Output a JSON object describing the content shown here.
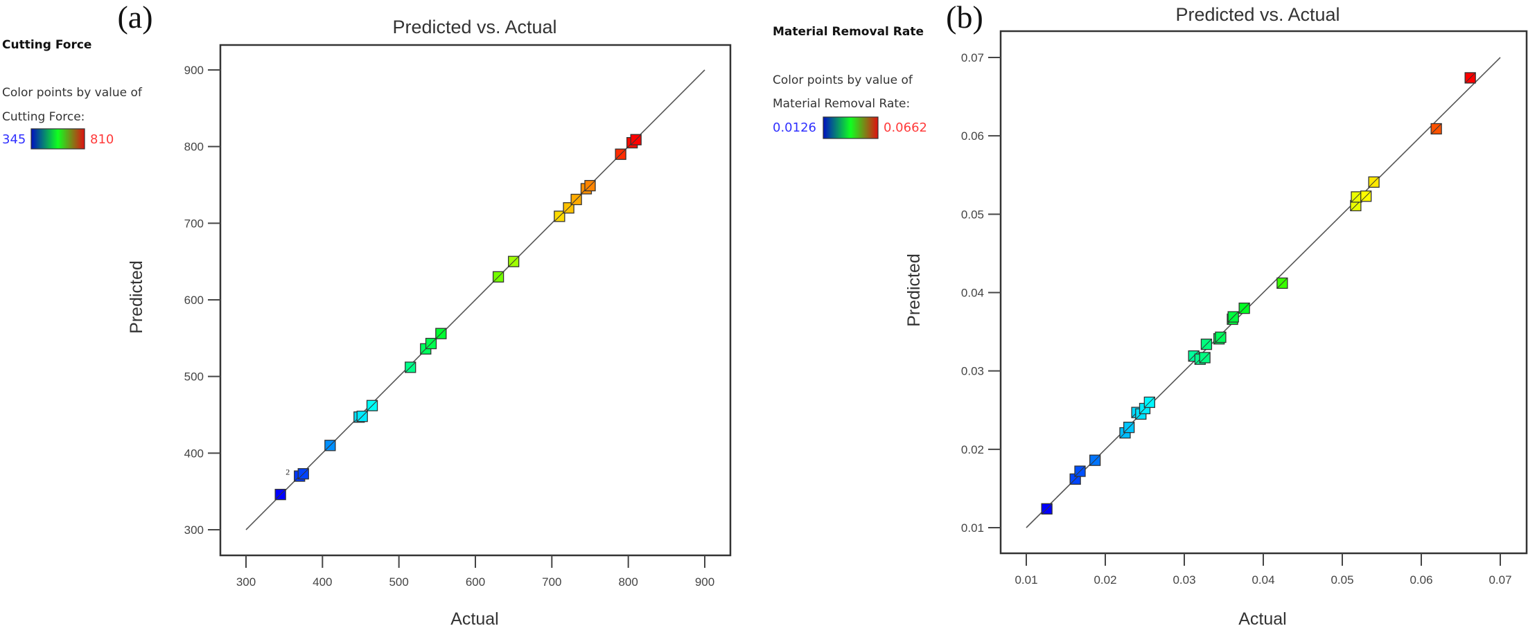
{
  "chart_data": [
    {
      "type": "scatter",
      "panel_label": "(a)",
      "title": "Predicted vs. Actual",
      "xlabel": "Actual",
      "ylabel": "Predicted",
      "xlim": [
        300,
        900
      ],
      "ylim": [
        300,
        900
      ],
      "xticks": [
        "300",
        "400",
        "500",
        "600",
        "700",
        "800",
        "900"
      ],
      "yticks": [
        "300",
        "400",
        "500",
        "600",
        "700",
        "800",
        "900"
      ],
      "legend": {
        "title": "Cutting Force",
        "line1": "Color points by value of",
        "line2": "Cutting Force:",
        "min_label": "345",
        "max_label": "810",
        "min": 345,
        "max": 810,
        "placement": "top-left"
      },
      "reference_line": [
        [
          300,
          300
        ],
        [
          900,
          900
        ]
      ],
      "points": [
        [
          345,
          346
        ],
        [
          370,
          370
        ],
        [
          375,
          373
        ],
        [
          410,
          410
        ],
        [
          448,
          447
        ],
        [
          452,
          448
        ],
        [
          465,
          462
        ],
        [
          515,
          512
        ],
        [
          535,
          536
        ],
        [
          542,
          543
        ],
        [
          555,
          556
        ],
        [
          630,
          630
        ],
        [
          650,
          650
        ],
        [
          710,
          709
        ],
        [
          722,
          720
        ],
        [
          732,
          731
        ],
        [
          745,
          745
        ],
        [
          750,
          749
        ],
        [
          790,
          790
        ],
        [
          805,
          805
        ],
        [
          810,
          809
        ]
      ],
      "annotations": [
        {
          "text": "2",
          "x": 370,
          "y": 370
        }
      ]
    },
    {
      "type": "scatter",
      "panel_label": "(b)",
      "title": "Predicted vs. Actual",
      "xlabel": "Actual",
      "ylabel": "Predicted",
      "xlim": [
        0.01,
        0.07
      ],
      "ylim": [
        0.01,
        0.07
      ],
      "xticks": [
        "0.01",
        "0.02",
        "0.03",
        "0.04",
        "0.05",
        "0.06",
        "0.07"
      ],
      "yticks": [
        "0.01",
        "0.02",
        "0.03",
        "0.04",
        "0.05",
        "0.06",
        "0.07"
      ],
      "legend": {
        "title": "Material Removal Rate",
        "line1": "Color points by value of",
        "line2": "Material Removal Rate:",
        "min_label": "0.0126",
        "max_label": "0.0662",
        "min": 0.0126,
        "max": 0.0662,
        "placement": "top-left"
      },
      "reference_line": [
        [
          0.01,
          0.01
        ],
        [
          0.07,
          0.07
        ]
      ],
      "points": [
        [
          0.0126,
          0.0124
        ],
        [
          0.0162,
          0.0162
        ],
        [
          0.0168,
          0.0172
        ],
        [
          0.0187,
          0.0186
        ],
        [
          0.0225,
          0.0221
        ],
        [
          0.023,
          0.0228
        ],
        [
          0.024,
          0.0247
        ],
        [
          0.0245,
          0.0245
        ],
        [
          0.025,
          0.0252
        ],
        [
          0.0256,
          0.026
        ],
        [
          0.0312,
          0.0319
        ],
        [
          0.032,
          0.0315
        ],
        [
          0.0326,
          0.0317
        ],
        [
          0.0328,
          0.0334
        ],
        [
          0.0344,
          0.0341
        ],
        [
          0.0346,
          0.0343
        ],
        [
          0.0361,
          0.0366
        ],
        [
          0.0362,
          0.0369
        ],
        [
          0.0376,
          0.038
        ],
        [
          0.0424,
          0.0412
        ],
        [
          0.0517,
          0.0511
        ],
        [
          0.0518,
          0.0522
        ],
        [
          0.053,
          0.0523
        ],
        [
          0.054,
          0.0541
        ],
        [
          0.0619,
          0.0609
        ],
        [
          0.0662,
          0.0674
        ]
      ],
      "annotations": []
    }
  ],
  "colors": {
    "legend_gradient": [
      "#0010c0",
      "#10ff20",
      "#e01010"
    ],
    "frame": "#333333"
  }
}
